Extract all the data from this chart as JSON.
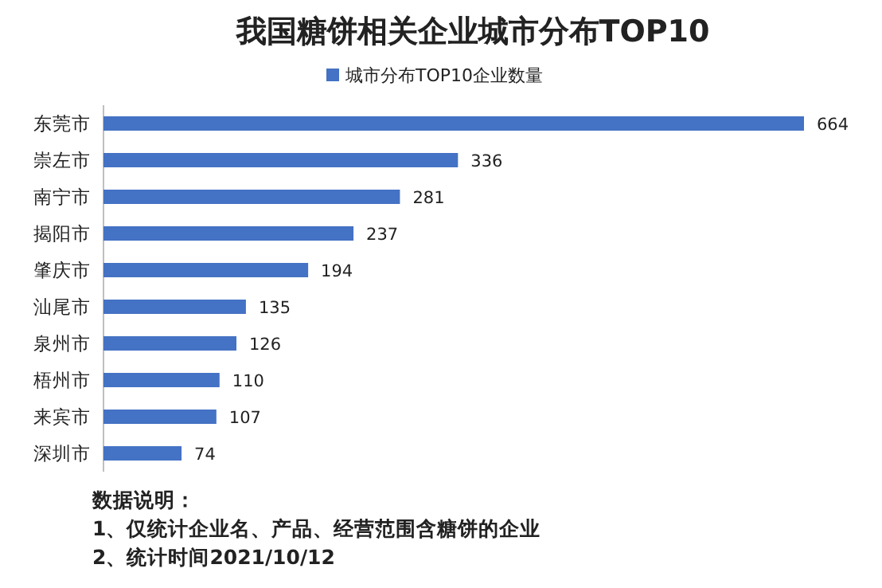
{
  "chart_data": {
    "type": "bar",
    "orientation": "horizontal",
    "title": "我国糖饼相关企业城市分布TOP10",
    "categories": [
      "东莞市",
      "崇左市",
      "南宁市",
      "揭阳市",
      "肇庆市",
      "汕尾市",
      "泉州市",
      "梧州市",
      "来宾市",
      "深圳市"
    ],
    "series": [
      {
        "name": "城市分布TOP10企业数量",
        "color": "#4472c4",
        "values": [
          664,
          336,
          281,
          237,
          194,
          135,
          126,
          110,
          107,
          74
        ]
      }
    ],
    "data_labels": true,
    "legend": "top",
    "annotations": [
      "数据说明：",
      "1、仅统计企业名、产品、经营范围含糖饼的企业",
      "2、统计时间2021/10/12"
    ]
  }
}
